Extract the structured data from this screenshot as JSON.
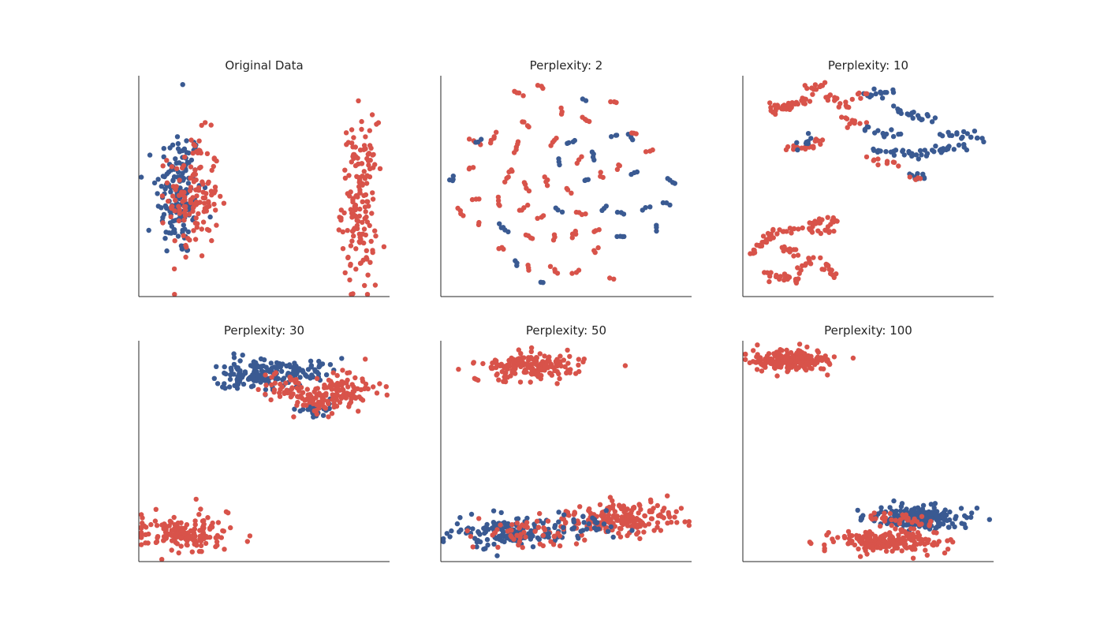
{
  "figure": {
    "background": "#ffffff"
  },
  "colors": {
    "class_a": "#3a5a92",
    "class_b": "#d8534a",
    "axis": "#262626"
  },
  "chart_data": [
    {
      "type": "scatter",
      "title": "Original Data",
      "xlim": [
        0,
        100
      ],
      "ylim": [
        0,
        100
      ],
      "xticks": false,
      "yticks": false,
      "clusters": [
        {
          "class": "class_a",
          "n": 160,
          "cx": 16,
          "cy": 47,
          "sx": 4.5,
          "sy": 15
        },
        {
          "class": "class_b",
          "n": 140,
          "cx": 22,
          "cy": 45,
          "sx": 5.0,
          "sy": 14
        },
        {
          "class": "class_b",
          "n": 160,
          "cx": 88,
          "cy": 43,
          "sx": 3.5,
          "sy": 18
        }
      ],
      "points": [
        {
          "class": "class_a",
          "x": 17.5,
          "y": 96
        },
        {
          "class": "class_a",
          "x": 4,
          "y": 30
        },
        {
          "class": "class_b",
          "x": 90,
          "y": 5
        }
      ]
    },
    {
      "type": "scatter",
      "title": "Perplexity: 2",
      "xlim": [
        0,
        100
      ],
      "ylim": [
        0,
        100
      ],
      "xticks": false,
      "yticks": false,
      "fragments": [
        {
          "class": "class_b",
          "x": 31,
          "y": 92,
          "n": 4
        },
        {
          "class": "class_b",
          "x": 40,
          "y": 95,
          "n": 3
        },
        {
          "class": "class_b",
          "x": 48,
          "y": 84,
          "n": 3
        },
        {
          "class": "class_b",
          "x": 58,
          "y": 80,
          "n": 4
        },
        {
          "class": "class_b",
          "x": 69,
          "y": 88,
          "n": 3
        },
        {
          "class": "class_a",
          "x": 57,
          "y": 89,
          "n": 2
        },
        {
          "class": "class_b",
          "x": 14,
          "y": 70,
          "n": 5
        },
        {
          "class": "class_a",
          "x": 15,
          "y": 70,
          "n": 3
        },
        {
          "class": "class_b",
          "x": 21,
          "y": 72,
          "n": 5
        },
        {
          "class": "class_b",
          "x": 30,
          "y": 68,
          "n": 5
        },
        {
          "class": "class_b",
          "x": 34,
          "y": 78,
          "n": 4
        },
        {
          "class": "class_b",
          "x": 45,
          "y": 70,
          "n": 4
        },
        {
          "class": "class_a",
          "x": 52,
          "y": 70,
          "n": 4
        },
        {
          "class": "class_a",
          "x": 47,
          "y": 61,
          "n": 3
        },
        {
          "class": "class_b",
          "x": 55,
          "y": 62,
          "n": 3
        },
        {
          "class": "class_a",
          "x": 61,
          "y": 64,
          "n": 4
        },
        {
          "class": "class_a",
          "x": 69,
          "y": 73,
          "n": 3
        },
        {
          "class": "class_a",
          "x": 76,
          "y": 72,
          "n": 3
        },
        {
          "class": "class_b",
          "x": 83,
          "y": 66,
          "n": 3
        },
        {
          "class": "class_b",
          "x": 77,
          "y": 74,
          "n": 3
        },
        {
          "class": "class_b",
          "x": 12,
          "y": 58,
          "n": 3
        },
        {
          "class": "class_b",
          "x": 27,
          "y": 55,
          "n": 6
        },
        {
          "class": "class_b",
          "x": 34,
          "y": 50,
          "n": 4
        },
        {
          "class": "class_b",
          "x": 42,
          "y": 52,
          "n": 4
        },
        {
          "class": "class_b",
          "x": 51,
          "y": 48,
          "n": 3
        },
        {
          "class": "class_a",
          "x": 58,
          "y": 53,
          "n": 3
        },
        {
          "class": "class_b",
          "x": 64,
          "y": 55,
          "n": 3
        },
        {
          "class": "class_b",
          "x": 71,
          "y": 59,
          "n": 3
        },
        {
          "class": "class_a",
          "x": 77,
          "y": 56,
          "n": 3
        },
        {
          "class": "class_a",
          "x": 92,
          "y": 52,
          "n": 4
        },
        {
          "class": "class_a",
          "x": 5,
          "y": 53,
          "n": 2
        },
        {
          "class": "class_b",
          "x": 8,
          "y": 38,
          "n": 4
        },
        {
          "class": "class_b",
          "x": 14,
          "y": 44,
          "n": 3
        },
        {
          "class": "class_b",
          "x": 23,
          "y": 43,
          "n": 4
        },
        {
          "class": "class_b",
          "x": 33,
          "y": 40,
          "n": 4
        },
        {
          "class": "class_b",
          "x": 40,
          "y": 36,
          "n": 3
        },
        {
          "class": "class_a",
          "x": 47,
          "y": 39,
          "n": 3
        },
        {
          "class": "class_b",
          "x": 56,
          "y": 38,
          "n": 4
        },
        {
          "class": "class_a",
          "x": 65,
          "y": 40,
          "n": 3
        },
        {
          "class": "class_a",
          "x": 72,
          "y": 38,
          "n": 3
        },
        {
          "class": "class_a",
          "x": 82,
          "y": 40,
          "n": 3
        },
        {
          "class": "class_a",
          "x": 90,
          "y": 42,
          "n": 3
        },
        {
          "class": "class_b",
          "x": 15,
          "y": 33,
          "n": 2
        },
        {
          "class": "class_a",
          "x": 25,
          "y": 31,
          "n": 5
        },
        {
          "class": "class_b",
          "x": 35,
          "y": 27,
          "n": 4
        },
        {
          "class": "class_b",
          "x": 45,
          "y": 27,
          "n": 3
        },
        {
          "class": "class_b",
          "x": 53,
          "y": 28,
          "n": 4
        },
        {
          "class": "class_b",
          "x": 62,
          "y": 30,
          "n": 3
        },
        {
          "class": "class_a",
          "x": 72,
          "y": 27,
          "n": 4
        },
        {
          "class": "class_a",
          "x": 86,
          "y": 31,
          "n": 3
        },
        {
          "class": "class_b",
          "x": 62,
          "y": 21,
          "n": 3
        },
        {
          "class": "class_b",
          "x": 24,
          "y": 22,
          "n": 3
        },
        {
          "class": "class_a",
          "x": 30,
          "y": 15,
          "n": 3
        },
        {
          "class": "class_b",
          "x": 35,
          "y": 13,
          "n": 3
        },
        {
          "class": "class_b",
          "x": 45,
          "y": 12,
          "n": 4
        },
        {
          "class": "class_b",
          "x": 54,
          "y": 11,
          "n": 3
        },
        {
          "class": "class_b",
          "x": 68,
          "y": 8,
          "n": 2
        },
        {
          "class": "class_a",
          "x": 40,
          "y": 6,
          "n": 2
        },
        {
          "class": "class_a",
          "x": 4,
          "y": 53,
          "n": 2
        }
      ]
    },
    {
      "type": "scatter",
      "title": "Perplexity: 10",
      "xlim": [
        0,
        100
      ],
      "ylim": [
        0,
        100
      ],
      "xticks": false,
      "yticks": false,
      "segments": [
        {
          "class": "class_b",
          "from": [
            11,
            85
          ],
          "to": [
            20,
            86
          ],
          "n": 28
        },
        {
          "class": "class_b",
          "from": [
            18,
            86
          ],
          "to": [
            27,
            90
          ],
          "n": 14
        },
        {
          "class": "class_b",
          "from": [
            25,
            94
          ],
          "to": [
            33,
            95
          ],
          "n": 12
        },
        {
          "class": "class_b",
          "from": [
            33,
            92
          ],
          "to": [
            42,
            85
          ],
          "n": 14
        },
        {
          "class": "class_b",
          "from": [
            40,
            80
          ],
          "to": [
            48,
            78
          ],
          "n": 12
        },
        {
          "class": "class_b",
          "from": [
            18,
            66
          ],
          "to": [
            32,
            70
          ],
          "n": 20
        },
        {
          "class": "class_a",
          "from": [
            22,
            68
          ],
          "to": [
            28,
            72
          ],
          "n": 8
        },
        {
          "class": "class_a",
          "from": [
            48,
            91
          ],
          "to": [
            60,
            93
          ],
          "n": 14
        },
        {
          "class": "class_b",
          "from": [
            43,
            90
          ],
          "to": [
            50,
            92
          ],
          "n": 6
        },
        {
          "class": "class_a",
          "from": [
            60,
            85
          ],
          "to": [
            75,
            80
          ],
          "n": 20
        },
        {
          "class": "class_a",
          "from": [
            48,
            76
          ],
          "to": [
            62,
            73
          ],
          "n": 14
        },
        {
          "class": "class_a",
          "from": [
            52,
            66
          ],
          "to": [
            68,
            66
          ],
          "n": 16
        },
        {
          "class": "class_b",
          "from": [
            50,
            62
          ],
          "to": [
            62,
            60
          ],
          "n": 10
        },
        {
          "class": "class_a",
          "from": [
            66,
            63
          ],
          "to": [
            82,
            68
          ],
          "n": 18
        },
        {
          "class": "class_a",
          "from": [
            80,
            74
          ],
          "to": [
            96,
            72
          ],
          "n": 18
        },
        {
          "class": "class_a",
          "from": [
            78,
            66
          ],
          "to": [
            90,
            68
          ],
          "n": 10
        },
        {
          "class": "class_a",
          "from": [
            67,
            55
          ],
          "to": [
            73,
            54
          ],
          "n": 10
        },
        {
          "class": "class_b",
          "from": [
            67,
            54
          ],
          "to": [
            71,
            53
          ],
          "n": 4
        },
        {
          "class": "class_b",
          "from": [
            3,
            20
          ],
          "to": [
            12,
            27
          ],
          "n": 18
        },
        {
          "class": "class_b",
          "from": [
            10,
            29
          ],
          "to": [
            22,
            31
          ],
          "n": 14
        },
        {
          "class": "class_b",
          "from": [
            26,
            33
          ],
          "to": [
            38,
            35
          ],
          "n": 18
        },
        {
          "class": "class_b",
          "from": [
            24,
            30
          ],
          "to": [
            36,
            29
          ],
          "n": 12
        },
        {
          "class": "class_b",
          "from": [
            16,
            22
          ],
          "to": [
            22,
            19
          ],
          "n": 12
        },
        {
          "class": "class_b",
          "from": [
            14,
            10
          ],
          "to": [
            22,
            7
          ],
          "n": 16
        },
        {
          "class": "class_b",
          "from": [
            22,
            12
          ],
          "to": [
            28,
            18
          ],
          "n": 10
        },
        {
          "class": "class_b",
          "from": [
            32,
            16
          ],
          "to": [
            36,
            9
          ],
          "n": 14
        },
        {
          "class": "class_b",
          "from": [
            8,
            11
          ],
          "to": [
            13,
            8
          ],
          "n": 6
        }
      ]
    },
    {
      "type": "scatter",
      "title": "Perplexity: 30",
      "xlim": [
        0,
        100
      ],
      "ylim": [
        0,
        100
      ],
      "xticks": false,
      "yticks": false,
      "clusters": [
        {
          "class": "class_a",
          "n": 130,
          "cx": 47,
          "cy": 85,
          "sx": 8,
          "sy": 4
        },
        {
          "class": "class_a",
          "n": 50,
          "cx": 66,
          "cy": 86,
          "sx": 6,
          "sy": 2.5
        },
        {
          "class": "class_a",
          "n": 25,
          "cx": 70,
          "cy": 69,
          "sx": 3.5,
          "sy": 2
        },
        {
          "class": "class_b",
          "n": 40,
          "cx": 58,
          "cy": 79,
          "sx": 5,
          "sy": 3
        },
        {
          "class": "class_b",
          "n": 100,
          "cx": 82,
          "cy": 76,
          "sx": 7,
          "sy": 4
        },
        {
          "class": "class_b",
          "n": 40,
          "cx": 70,
          "cy": 72,
          "sx": 4,
          "sy": 2.5
        },
        {
          "class": "class_b",
          "n": 160,
          "cx": 18,
          "cy": 13,
          "sx": 10,
          "sy": 4
        }
      ]
    },
    {
      "type": "scatter",
      "title": "Perplexity: 50",
      "xlim": [
        0,
        100
      ],
      "ylim": [
        0,
        100
      ],
      "xticks": false,
      "yticks": false,
      "clusters": [
        {
          "class": "class_b",
          "n": 170,
          "cx": 36,
          "cy": 88,
          "sx": 10,
          "sy": 3.2
        },
        {
          "class": "class_a",
          "n": 150,
          "cx": 27,
          "cy": 13,
          "sx": 11,
          "sy": 3.5
        },
        {
          "class": "class_b",
          "n": 50,
          "cx": 32,
          "cy": 13,
          "sx": 10,
          "sy": 3.5
        },
        {
          "class": "class_b",
          "n": 180,
          "cx": 72,
          "cy": 19,
          "sx": 12,
          "sy": 4.2
        },
        {
          "class": "class_a",
          "n": 30,
          "cx": 58,
          "cy": 17,
          "sx": 8,
          "sy": 3
        }
      ]
    },
    {
      "type": "scatter",
      "title": "Perplexity: 100",
      "xlim": [
        0,
        100
      ],
      "ylim": [
        0,
        100
      ],
      "xticks": false,
      "yticks": false,
      "clusters": [
        {
          "class": "class_b",
          "n": 220,
          "cx": 18,
          "cy": 91,
          "sx": 8,
          "sy": 2.3
        },
        {
          "class": "class_a",
          "n": 220,
          "cx": 70,
          "cy": 20,
          "sx": 9,
          "sy": 2.6
        },
        {
          "class": "class_b",
          "n": 40,
          "cx": 62,
          "cy": 18,
          "sx": 6,
          "sy": 2
        },
        {
          "class": "class_b",
          "n": 180,
          "cx": 58,
          "cy": 9,
          "sx": 11,
          "sy": 2.6
        }
      ]
    }
  ]
}
